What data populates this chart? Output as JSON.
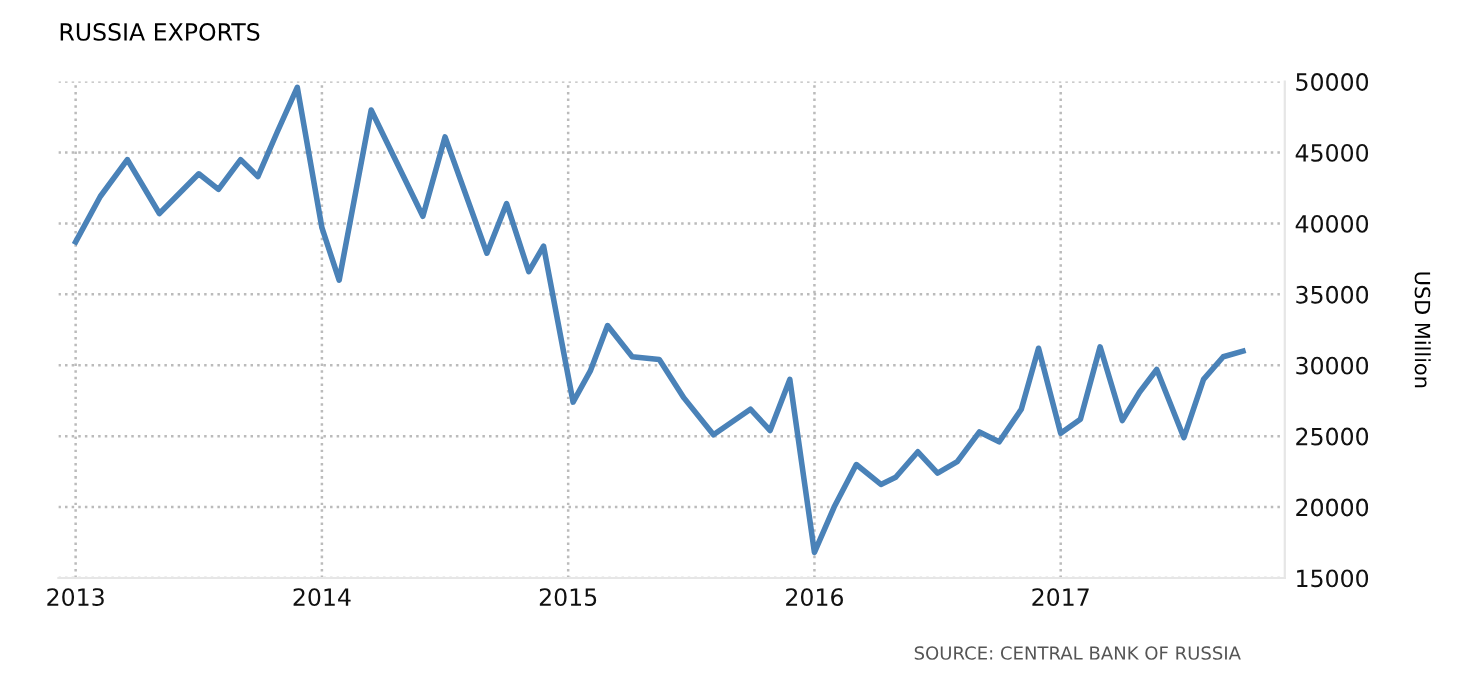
{
  "chart_data": {
    "type": "line",
    "title": "RUSSIA EXPORTS",
    "ylabel": "USD Million",
    "annotations": [
      "SOURCE: CENTRAL BANK OF RUSSIA"
    ],
    "x": [
      2013.0,
      2013.1,
      2013.21,
      2013.34,
      2013.5,
      2013.58,
      2013.67,
      2013.74,
      2013.82,
      2013.9,
      2014.0,
      2014.07,
      2014.2,
      2014.41,
      2014.5,
      2014.67,
      2014.75,
      2014.84,
      2014.9,
      2015.02,
      2015.09,
      2015.16,
      2015.26,
      2015.37,
      2015.47,
      2015.59,
      2015.74,
      2015.82,
      2015.9,
      2016.0,
      2016.08,
      2016.17,
      2016.27,
      2016.33,
      2016.42,
      2016.5,
      2016.58,
      2016.67,
      2016.75,
      2016.84,
      2016.91,
      2017.0,
      2017.08,
      2017.16,
      2017.25,
      2017.32,
      2017.39,
      2017.5,
      2017.58,
      2017.66,
      2017.74
    ],
    "series": [
      {
        "color": "#4a82b8",
        "values": [
          38700,
          41900,
          44500,
          40700,
          43500,
          42400,
          44500,
          43300,
          46500,
          49600,
          39700,
          36000,
          48000,
          40500,
          46100,
          37900,
          41400,
          36600,
          38400,
          27400,
          29600,
          32800,
          30600,
          30400,
          27700,
          25100,
          26900,
          25400,
          29000,
          16800,
          20000,
          23000,
          21600,
          22100,
          23900,
          22400,
          23200,
          25300,
          24600,
          26900,
          31200,
          25200,
          26200,
          31300,
          26100,
          28100,
          29700,
          24900,
          29000,
          30600,
          31000
        ]
      }
    ],
    "xlim": [
      2012.93,
      2017.91
    ],
    "xticks": [
      2013,
      2014,
      2015,
      2016,
      2017
    ],
    "ylim": [
      15000,
      50000
    ],
    "yticks": [
      15000,
      20000,
      25000,
      30000,
      35000,
      40000,
      45000,
      50000
    ],
    "grid": true,
    "legend": false,
    "line_style": "solid",
    "marker": "none"
  }
}
